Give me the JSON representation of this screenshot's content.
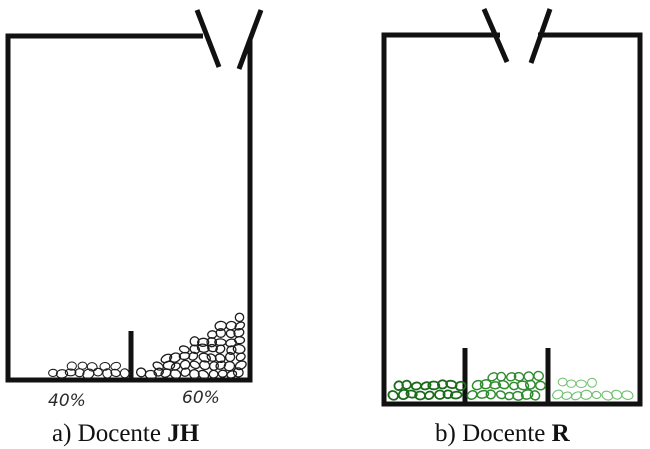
{
  "panels": [
    {
      "id": "a",
      "caption_prefix": "a) Docente",
      "caption_name": "JH",
      "labels": {
        "left": "40%",
        "right": "60%"
      },
      "colors": {
        "outline": "#111111",
        "pebbles": "#1c1c1c"
      }
    },
    {
      "id": "b",
      "caption_prefix": "b) Docente",
      "caption_name": "R",
      "colors": {
        "outline": "#111111",
        "pebbles_dark": "#1b6b1b",
        "pebbles_mid": "#2e8b2e",
        "pebbles_light": "#6fbf6f"
      }
    }
  ]
}
